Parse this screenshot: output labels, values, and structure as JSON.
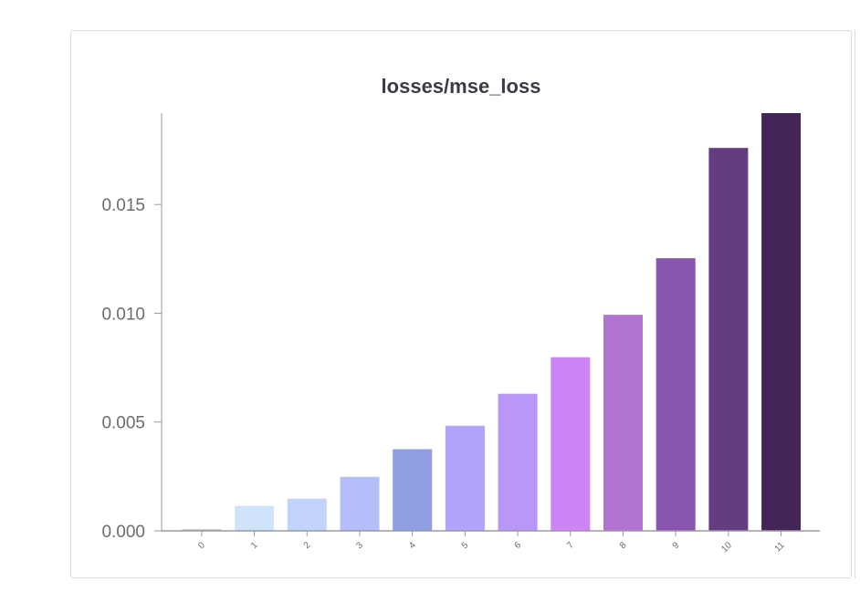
{
  "chart_data": {
    "type": "bar",
    "title": "losses/mse_loss",
    "xlabel": "",
    "ylabel": "",
    "categories": [
      "0",
      "1",
      "2",
      "3",
      "4",
      "5",
      "6",
      "7",
      "8",
      "9",
      "10",
      "11"
    ],
    "values": [
      8e-05,
      0.00115,
      0.00148,
      0.00248,
      0.00375,
      0.00483,
      0.0063,
      0.00798,
      0.00993,
      0.01253,
      0.0176,
      0.0192
    ],
    "colors": [
      "#c8c8c8",
      "#cfe4fb",
      "#c2d4fb",
      "#b4bff9",
      "#8e9ee0",
      "#b0a4f8",
      "#b997f7",
      "#cc85f4",
      "#b174d2",
      "#8955ae",
      "#643c80",
      "#432657"
    ],
    "ylim": [
      0,
      0.0192
    ],
    "yticks": [
      {
        "value": 0,
        "label": "0.000"
      },
      {
        "value": 0.005,
        "label": "0.005"
      },
      {
        "value": 0.01,
        "label": "0.010"
      },
      {
        "value": 0.015,
        "label": "0.015"
      }
    ],
    "axis_color": "#9a9a9a",
    "title_color": "#3b3b45",
    "tick_color": "#6b6b72"
  }
}
